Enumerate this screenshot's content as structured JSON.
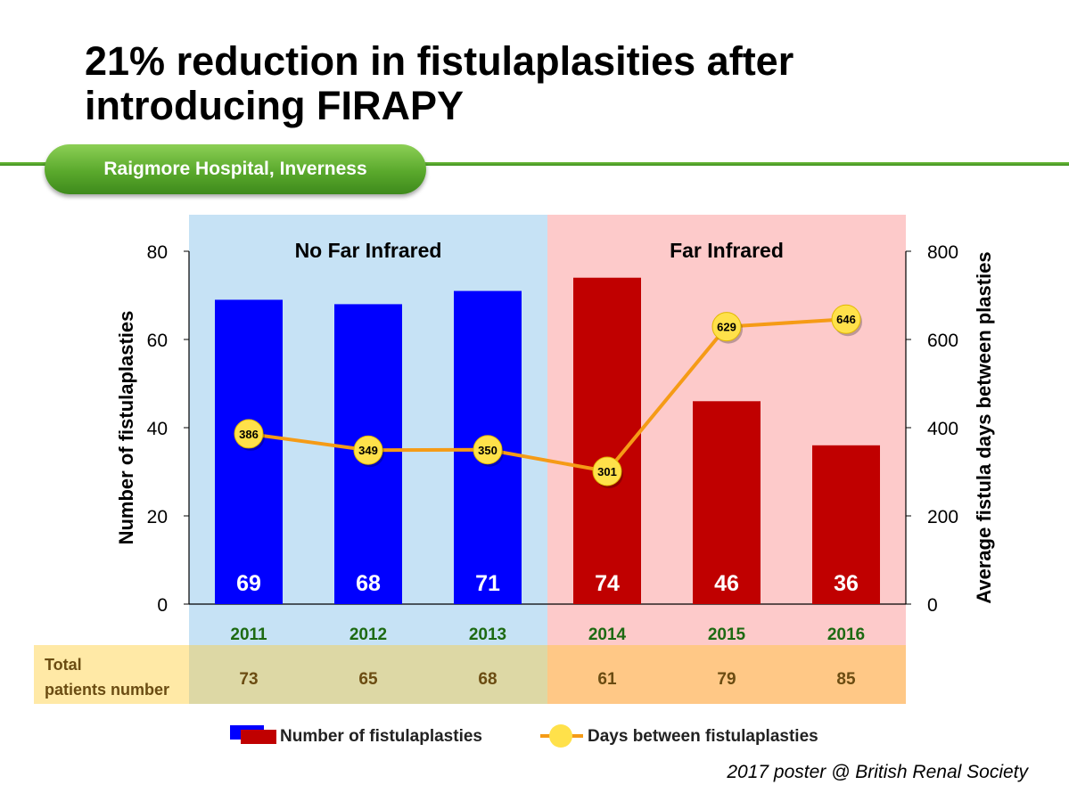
{
  "title_line1": "21% reduction in fistulaplasities after",
  "title_line2": "introducing FIRAPY",
  "badge": "Raigmore Hospital, Inverness",
  "credit": "2017 poster @ British Renal Society",
  "colors": {
    "no_far_infrared_bg": "#c6e2f5",
    "far_infrared_bg": "#fdcaca",
    "bar_no_far_infrared": "#0000ff",
    "bar_far_infrared": "#c00000",
    "line": "#f59b16",
    "marker": "#ffe14a",
    "year_label": "#1d6a12",
    "table_left_bg": "#ddd8a5",
    "table_right_bg": "#ffc886",
    "table_header_bg": "#ffe9a6",
    "table_text": "#6b4c12"
  },
  "chart_data": {
    "type": "bar",
    "categories": [
      "2011",
      "2012",
      "2013",
      "2014",
      "2015",
      "2016"
    ],
    "regions": [
      {
        "label": "No Far Infrared",
        "categories": [
          "2011",
          "2012",
          "2013"
        ]
      },
      {
        "label": "Far Infrared",
        "categories": [
          "2014",
          "2015",
          "2016"
        ]
      }
    ],
    "series": [
      {
        "name": "Number of fistulaplasties",
        "type": "bar",
        "axis": "left",
        "values": [
          69,
          68,
          71,
          74,
          46,
          36
        ]
      },
      {
        "name": "Days between fistulaplasties",
        "type": "line",
        "axis": "right",
        "values": [
          386,
          349,
          350,
          301,
          629,
          646
        ]
      }
    ],
    "ylabel": "Number of fistulaplasties",
    "ylim": [
      0,
      80
    ],
    "yticks": [
      0,
      20,
      40,
      60,
      80
    ],
    "y2label": "Average fistula days between plasties",
    "y2lim": [
      0,
      800
    ],
    "y2ticks": [
      0,
      200,
      400,
      600,
      800
    ],
    "table": {
      "header": "Total patients number",
      "values": [
        73,
        65,
        68,
        61,
        79,
        85
      ]
    },
    "legend": [
      "Number of fistulaplasties",
      "Days between fistulaplasties"
    ],
    "legend_position": "bottom"
  }
}
